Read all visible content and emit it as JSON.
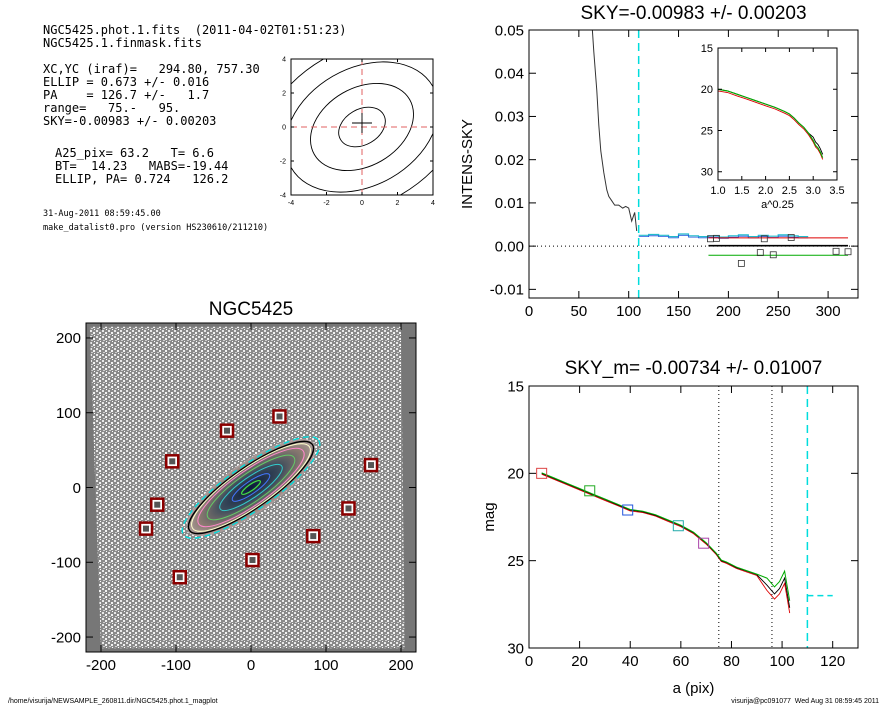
{
  "header": {
    "lines": [
      "NGC5425.phot.1.fits  (2011-04-02T01:51:23)",
      "NGC5425.1.finmask.fits"
    ]
  },
  "params": {
    "lines": [
      "XC,YC (iraf)=   294.80, 757.30",
      "ELLIP = 0.673 +/- 0.016",
      "PA    = 126.7 +/-   1.7",
      "range=   75.-   95.",
      "SKY=-0.00983 +/- 0.00203"
    ]
  },
  "derived": {
    "lines": [
      "A25_pix= 63.2   T= 6.6",
      "BT=  14.23   MABS=-19.44",
      "ELLIP, PA= 0.724   126.2"
    ]
  },
  "meta": {
    "lines": [
      "31-Aug-2011 08:59:45.00",
      "make_datalist0.pro (version HS230610/211210)"
    ]
  },
  "footer": {
    "left": "/home/visurija/NEWSAMPLE_260811.dir/NGC5425.phot.1_magplot",
    "right": "visurija@pc091077  Wed Aug 31 08:59:45 2011"
  },
  "colors": {
    "cyan_dashed": "#00dddd",
    "center_dashed": "#e06060",
    "mask_box": "#8b0000",
    "green": "#00aa00",
    "red": "#dd0000",
    "blue": "#2255dd",
    "magenta": "#aa44aa"
  },
  "chart_data": [
    {
      "id": "contour",
      "type": "contour",
      "title": "",
      "xlabel": "",
      "ylabel": "",
      "xlim": [
        -4,
        4
      ],
      "ylim": [
        -4,
        4
      ],
      "xticks": [
        -4,
        -2,
        0,
        2,
        4
      ],
      "yticks": [
        -4,
        -2,
        0,
        2,
        4
      ],
      "center": [
        0,
        0
      ],
      "contours": [
        {
          "a": 1.4,
          "b": 1.0
        },
        {
          "a": 3.1,
          "b": 2.2
        },
        {
          "a": 4.6,
          "b": 3.3
        },
        {
          "a": 6.2,
          "b": 4.4
        }
      ],
      "tilt_deg": 30
    },
    {
      "id": "sky",
      "type": "line",
      "title": "SKY=-0.00983 +/- 0.00203",
      "xlabel": "",
      "ylabel": "INTENS-SKY",
      "xlim": [
        0,
        330
      ],
      "ylim": [
        -0.012,
        0.05
      ],
      "xticks": [
        0,
        50,
        100,
        150,
        200,
        250,
        300
      ],
      "yticks": [
        -0.01,
        0.0,
        0.01,
        0.02,
        0.03,
        0.04,
        0.05
      ],
      "ytick_labels": [
        "-0.01",
        "0.00",
        "0.01",
        "0.02",
        "0.03",
        "0.04",
        "0.05"
      ],
      "vline": 110,
      "profile": {
        "x": [
          63,
          65,
          68,
          70,
          72,
          75,
          78,
          80,
          83,
          86,
          90,
          94,
          97,
          100,
          103,
          106,
          108
        ],
        "y": [
          0.052,
          0.045,
          0.036,
          0.028,
          0.022,
          0.017,
          0.013,
          0.0115,
          0.0105,
          0.0095,
          0.0095,
          0.0088,
          0.0092,
          0.0088,
          0.0058,
          0.0078,
          0.0035
        ]
      },
      "cyan_steps": {
        "x": [
          110,
          120,
          130,
          140,
          150,
          160,
          170,
          180,
          190,
          200,
          210,
          220,
          230,
          240,
          250,
          260,
          270
        ],
        "y": [
          0.0025,
          0.0027,
          0.0025,
          0.0022,
          0.0028,
          0.0024,
          0.0022,
          0.0024,
          0.0021,
          0.0024,
          0.0026,
          0.0022,
          0.0025,
          0.0023,
          0.0026,
          0.0024,
          0.0022
        ]
      },
      "squares": {
        "x": [
          182,
          188,
          213,
          232,
          236,
          245,
          263,
          308,
          320
        ],
        "y": [
          0.0017,
          0.0018,
          -0.004,
          -0.0015,
          0.0017,
          -0.002,
          0.002,
          -0.0012,
          -0.0013
        ]
      },
      "sky_lines": {
        "red": 0.0019,
        "black": 0.0001,
        "green": -0.0021,
        "x_start": 180,
        "x_end": 320
      },
      "inset": {
        "xlabel": "a^0.25",
        "ylabel": "",
        "xlim": [
          1.0,
          3.5
        ],
        "ylim": [
          31,
          15
        ],
        "xticks": [
          1.0,
          1.5,
          2.0,
          2.5,
          3.0,
          3.5
        ],
        "xtick_labels": [
          "1.0",
          "1.5",
          "2.0",
          "2.5",
          "3.0",
          "3.5"
        ],
        "yticks": [
          15,
          20,
          25,
          30
        ],
        "x": [
          1.0,
          1.2,
          1.4,
          1.6,
          1.8,
          2.0,
          2.2,
          2.4,
          2.5,
          2.6,
          2.7,
          2.8,
          2.9,
          3.0,
          3.05,
          3.1,
          3.15,
          3.2
        ],
        "y": [
          20.0,
          20.2,
          20.6,
          21.0,
          21.4,
          21.8,
          22.2,
          22.7,
          23.0,
          23.5,
          24.1,
          24.6,
          25.3,
          26.2,
          26.8,
          27.1,
          27.6,
          28.3
        ]
      }
    },
    {
      "id": "image",
      "type": "image",
      "title": "NGC5425",
      "xlabel": "",
      "ylabel": "",
      "xlim": [
        -220,
        220
      ],
      "ylim": [
        -220,
        220
      ],
      "xticks": [
        -200,
        -100,
        0,
        100,
        200
      ],
      "yticks": [
        -200,
        -100,
        0,
        100,
        200
      ],
      "galaxy": {
        "a": 100,
        "b": 27,
        "pa_deg": 35
      },
      "mask_points": [
        {
          "x": -105,
          "y": 35
        },
        {
          "x": -32,
          "y": 76
        },
        {
          "x": 38,
          "y": 95
        },
        {
          "x": 160,
          "y": 30
        },
        {
          "x": -125,
          "y": -23
        },
        {
          "x": -140,
          "y": -55
        },
        {
          "x": 130,
          "y": -28
        },
        {
          "x": 83,
          "y": -65
        },
        {
          "x": 2,
          "y": -97
        },
        {
          "x": -95,
          "y": -120
        }
      ]
    },
    {
      "id": "magnitude",
      "type": "line",
      "title": "SKY_m= -0.00734 +/- 0.01007",
      "xlabel": "a (pix)",
      "ylabel": "mag",
      "xlim": [
        0,
        130
      ],
      "ylim": [
        30,
        15
      ],
      "xticks": [
        0,
        20,
        40,
        60,
        80,
        100,
        120
      ],
      "yticks": [
        15,
        20,
        25,
        30
      ],
      "dotted_vlines": [
        75,
        96
      ],
      "cyan_vline": 110,
      "sky_segment": {
        "x": [
          110,
          120
        ],
        "y": 27
      },
      "profile": {
        "x": [
          5,
          10,
          15,
          20,
          25,
          30,
          35,
          40,
          45,
          50,
          55,
          60,
          65,
          70,
          74,
          76,
          78,
          82,
          86,
          90,
          94,
          97,
          99,
          101,
          103
        ],
        "y": [
          20.0,
          20.3,
          20.6,
          20.9,
          21.2,
          21.5,
          21.8,
          22.1,
          22.2,
          22.4,
          22.7,
          23.0,
          23.4,
          24.0,
          24.6,
          25.0,
          25.1,
          25.4,
          25.6,
          25.8,
          26.2,
          26.7,
          26.4,
          25.8,
          27.5
        ]
      },
      "markers": [
        {
          "x": 5,
          "y": 20.0,
          "color": "#dd4444"
        },
        {
          "x": 24,
          "y": 21.0,
          "color": "#22aa22"
        },
        {
          "x": 39,
          "y": 22.1,
          "color": "#2255dd"
        },
        {
          "x": 59,
          "y": 23.0,
          "color": "#22aaaa"
        },
        {
          "x": 69,
          "y": 24.0,
          "color": "#aa44aa"
        }
      ]
    }
  ]
}
